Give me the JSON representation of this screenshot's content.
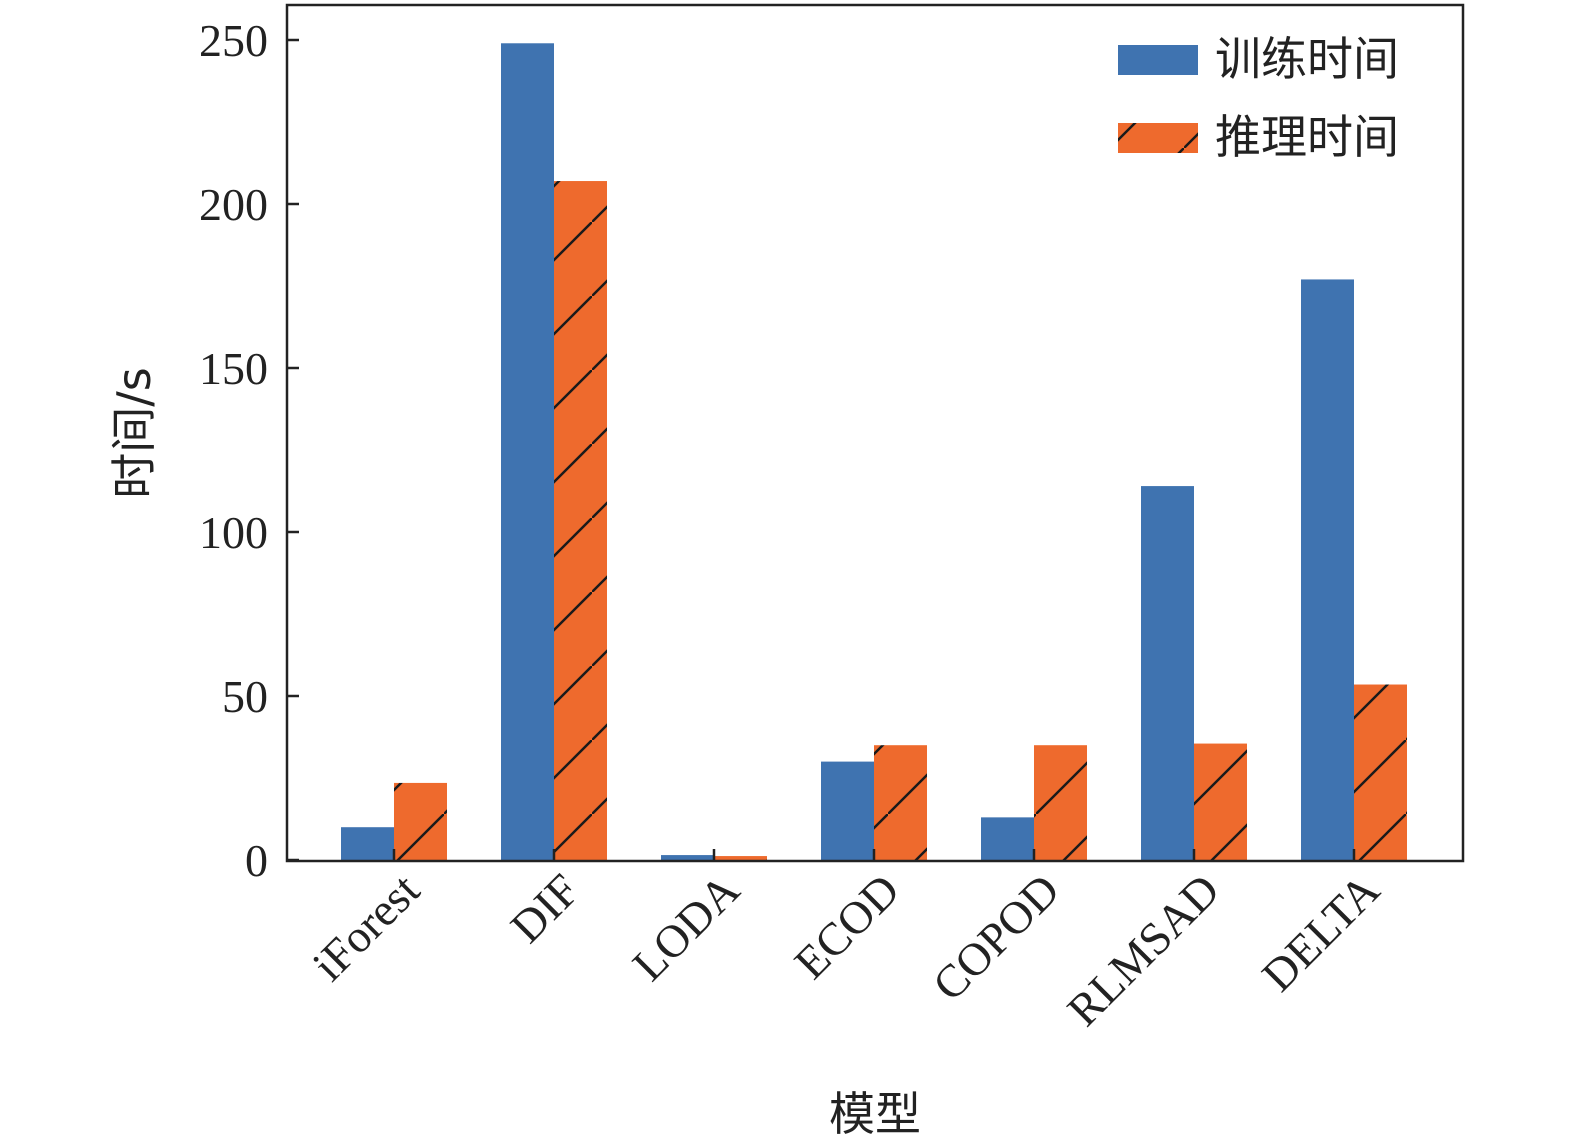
{
  "chart_data": {
    "type": "bar",
    "title": "",
    "xlabel": "模型",
    "ylabel": "时间/s",
    "ylim": [
      0,
      260
    ],
    "yticks": [
      0,
      50,
      100,
      150,
      200,
      250
    ],
    "categories": [
      "iForest",
      "DIF",
      "LODA",
      "ECOD",
      "COPOD",
      "RLMSAD",
      "DELTA"
    ],
    "series": [
      {
        "name": "训练时间",
        "color": "#3f73b0",
        "pattern": "solid",
        "values": [
          10,
          249,
          1.5,
          30,
          13,
          114,
          177
        ]
      },
      {
        "name": "推理时间",
        "color": "#ee6a2d",
        "pattern": "diagonal-hatch",
        "values": [
          23.5,
          207,
          1.2,
          35,
          35,
          35.5,
          53.5
        ]
      }
    ],
    "legend_position": "top-right",
    "grid": false
  }
}
